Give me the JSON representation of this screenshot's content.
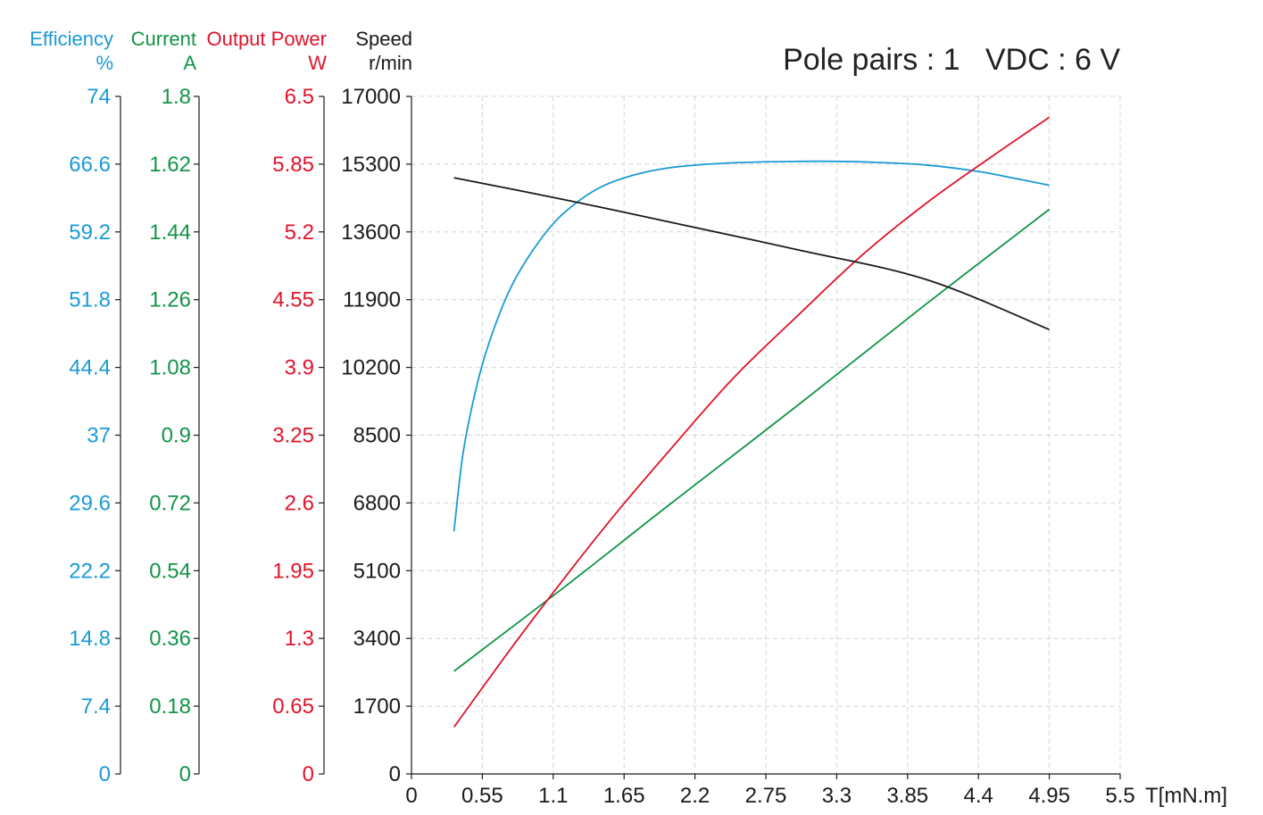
{
  "chart_data": {
    "type": "line",
    "title": "Pole pairs : 1   VDC : 6 V",
    "xlabel": "T[mN.m]",
    "xlim": [
      0,
      5.5
    ],
    "x_ticks": [
      "0",
      "0.55",
      "1.1",
      "1.65",
      "2.2",
      "2.75",
      "3.3",
      "3.85",
      "4.4",
      "4.95",
      "5.5"
    ],
    "grid": true,
    "axes": [
      {
        "key": "efficiency",
        "title": "Efficiency",
        "unit": "%",
        "color": "#1a9ad6",
        "ylim": [
          0,
          74
        ],
        "ticks": [
          "0",
          "7.4",
          "14.8",
          "22.2",
          "29.6",
          "37",
          "44.4",
          "51.8",
          "59.2",
          "66.6",
          "74"
        ]
      },
      {
        "key": "current",
        "title": "Current",
        "unit": "A",
        "color": "#139447",
        "ylim": [
          0,
          1.8
        ],
        "ticks": [
          "0",
          "0.18",
          "0.36",
          "0.54",
          "0.72",
          "0.9",
          "1.08",
          "1.26",
          "1.44",
          "1.62",
          "1.8"
        ]
      },
      {
        "key": "power",
        "title": "Output Power",
        "unit": "W",
        "color": "#e0142b",
        "ylim": [
          0,
          6.5
        ],
        "ticks": [
          "0",
          "0.65",
          "1.3",
          "1.95",
          "2.6",
          "3.25",
          "3.9",
          "4.55",
          "5.2",
          "5.85",
          "6.5"
        ]
      },
      {
        "key": "speed",
        "title": "Speed",
        "unit": "r/min",
        "color": "#1a1a1a",
        "ylim": [
          0,
          17000
        ],
        "ticks": [
          "0",
          "1700",
          "3400",
          "5100",
          "6800",
          "8500",
          "10200",
          "11900",
          "13600",
          "15300",
          "17000"
        ]
      }
    ],
    "series": [
      {
        "name": "Efficiency",
        "axis": "efficiency",
        "color": "#1a9ad6",
        "x": [
          0.33,
          0.4,
          0.5,
          0.6,
          0.75,
          0.9,
          1.1,
          1.3,
          1.5,
          1.75,
          2.0,
          2.3,
          2.6,
          3.0,
          3.3,
          3.6,
          4.0,
          4.4,
          4.7,
          4.95
        ],
        "y": [
          26.5,
          35.0,
          42.0,
          47.0,
          52.5,
          56.3,
          60.1,
          62.6,
          64.3,
          65.5,
          66.2,
          66.6,
          66.8,
          66.9,
          66.9,
          66.8,
          66.5,
          65.8,
          65.0,
          64.3
        ]
      },
      {
        "name": "Current",
        "axis": "current",
        "color": "#139447",
        "x": [
          0.33,
          1.2,
          2.0,
          3.0,
          4.0,
          4.95
        ],
        "y": [
          0.273,
          0.5,
          0.715,
          0.98,
          1.25,
          1.5
        ]
      },
      {
        "name": "Output Power",
        "axis": "power",
        "color": "#e0142b",
        "x": [
          0.33,
          0.8,
          1.2,
          1.6,
          2.0,
          2.5,
          3.0,
          3.5,
          4.0,
          4.5,
          4.95
        ],
        "y": [
          0.45,
          1.25,
          1.9,
          2.52,
          3.1,
          3.8,
          4.4,
          4.98,
          5.48,
          5.92,
          6.3
        ]
      },
      {
        "name": "Speed",
        "axis": "speed",
        "color": "#1a1a1a",
        "x": [
          0.33,
          1.2,
          2.0,
          3.0,
          4.0,
          4.95
        ],
        "y": [
          14960,
          14400,
          13850,
          13150,
          12400,
          11150
        ]
      }
    ]
  }
}
